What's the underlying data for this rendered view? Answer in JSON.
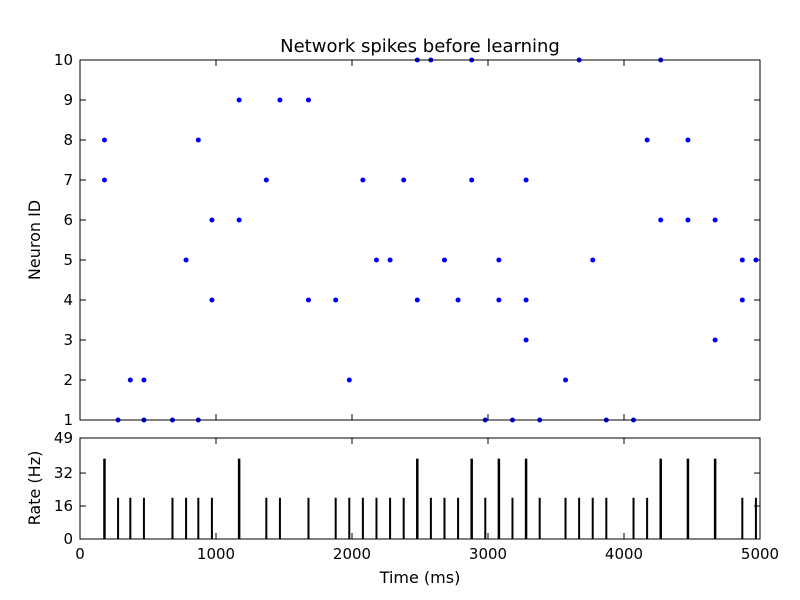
{
  "chart_data": [
    {
      "type": "scatter",
      "title": "Network spikes before learning",
      "xlabel": "",
      "ylabel": "Neuron ID",
      "xlim": [
        0,
        5000
      ],
      "ylim": [
        1,
        10
      ],
      "yticks": [
        "1",
        "2",
        "3",
        "4",
        "5",
        "6",
        "7",
        "8",
        "9",
        "10"
      ],
      "grid": false,
      "marker_color": "#0000ff",
      "points": [
        {
          "x": 180,
          "y": 8
        },
        {
          "x": 180,
          "y": 7
        },
        {
          "x": 280,
          "y": 1
        },
        {
          "x": 370,
          "y": 2
        },
        {
          "x": 470,
          "y": 2
        },
        {
          "x": 470,
          "y": 1
        },
        {
          "x": 680,
          "y": 1
        },
        {
          "x": 780,
          "y": 5
        },
        {
          "x": 870,
          "y": 8
        },
        {
          "x": 870,
          "y": 1
        },
        {
          "x": 970,
          "y": 6
        },
        {
          "x": 970,
          "y": 4
        },
        {
          "x": 1170,
          "y": 9
        },
        {
          "x": 1170,
          "y": 6
        },
        {
          "x": 1370,
          "y": 7
        },
        {
          "x": 1470,
          "y": 9
        },
        {
          "x": 1680,
          "y": 9
        },
        {
          "x": 1680,
          "y": 4
        },
        {
          "x": 1880,
          "y": 4
        },
        {
          "x": 1980,
          "y": 2
        },
        {
          "x": 2080,
          "y": 7
        },
        {
          "x": 2180,
          "y": 5
        },
        {
          "x": 2280,
          "y": 5
        },
        {
          "x": 2380,
          "y": 7
        },
        {
          "x": 2480,
          "y": 10
        },
        {
          "x": 2480,
          "y": 4
        },
        {
          "x": 2580,
          "y": 10
        },
        {
          "x": 2680,
          "y": 5
        },
        {
          "x": 2780,
          "y": 4
        },
        {
          "x": 2880,
          "y": 10
        },
        {
          "x": 2880,
          "y": 7
        },
        {
          "x": 2980,
          "y": 1
        },
        {
          "x": 3080,
          "y": 5
        },
        {
          "x": 3080,
          "y": 4
        },
        {
          "x": 3180,
          "y": 1
        },
        {
          "x": 3280,
          "y": 7
        },
        {
          "x": 3280,
          "y": 4
        },
        {
          "x": 3280,
          "y": 3
        },
        {
          "x": 3380,
          "y": 1
        },
        {
          "x": 3570,
          "y": 2
        },
        {
          "x": 3670,
          "y": 10
        },
        {
          "x": 3770,
          "y": 5
        },
        {
          "x": 3870,
          "y": 1
        },
        {
          "x": 4070,
          "y": 1
        },
        {
          "x": 4170,
          "y": 8
        },
        {
          "x": 4270,
          "y": 10
        },
        {
          "x": 4270,
          "y": 6
        },
        {
          "x": 4470,
          "y": 8
        },
        {
          "x": 4470,
          "y": 6
        },
        {
          "x": 4670,
          "y": 6
        },
        {
          "x": 4670,
          "y": 3
        },
        {
          "x": 4870,
          "y": 5
        },
        {
          "x": 4870,
          "y": 4
        },
        {
          "x": 4970,
          "y": 5
        }
      ]
    },
    {
      "type": "bar",
      "title": "",
      "xlabel": "Time (ms)",
      "ylabel": "Rate (Hz)",
      "xlim": [
        0,
        5000
      ],
      "ylim": [
        0,
        49
      ],
      "xticks": [
        "0",
        "1000",
        "2000",
        "3000",
        "4000",
        "5000"
      ],
      "yticks": [
        "0",
        "16",
        "32",
        "49"
      ],
      "ytick_values": [
        0,
        16,
        32,
        49
      ],
      "bar_color": "#000000",
      "bars": [
        {
          "x": 180,
          "value": 39
        },
        {
          "x": 280,
          "value": 20
        },
        {
          "x": 370,
          "value": 20
        },
        {
          "x": 470,
          "value": 20
        },
        {
          "x": 680,
          "value": 20
        },
        {
          "x": 780,
          "value": 20
        },
        {
          "x": 870,
          "value": 20
        },
        {
          "x": 970,
          "value": 20
        },
        {
          "x": 1170,
          "value": 39
        },
        {
          "x": 1370,
          "value": 20
        },
        {
          "x": 1470,
          "value": 20
        },
        {
          "x": 1680,
          "value": 20
        },
        {
          "x": 1880,
          "value": 20
        },
        {
          "x": 1980,
          "value": 20
        },
        {
          "x": 2080,
          "value": 20
        },
        {
          "x": 2180,
          "value": 20
        },
        {
          "x": 2280,
          "value": 20
        },
        {
          "x": 2380,
          "value": 20
        },
        {
          "x": 2480,
          "value": 39
        },
        {
          "x": 2580,
          "value": 20
        },
        {
          "x": 2680,
          "value": 20
        },
        {
          "x": 2780,
          "value": 20
        },
        {
          "x": 2880,
          "value": 39
        },
        {
          "x": 2980,
          "value": 20
        },
        {
          "x": 3080,
          "value": 39
        },
        {
          "x": 3180,
          "value": 20
        },
        {
          "x": 3280,
          "value": 39
        },
        {
          "x": 3380,
          "value": 20
        },
        {
          "x": 3570,
          "value": 20
        },
        {
          "x": 3670,
          "value": 20
        },
        {
          "x": 3770,
          "value": 20
        },
        {
          "x": 3870,
          "value": 20
        },
        {
          "x": 4070,
          "value": 20
        },
        {
          "x": 4170,
          "value": 20
        },
        {
          "x": 4270,
          "value": 39
        },
        {
          "x": 4470,
          "value": 39
        },
        {
          "x": 4670,
          "value": 39
        },
        {
          "x": 4870,
          "value": 20
        },
        {
          "x": 4970,
          "value": 20
        }
      ]
    }
  ]
}
